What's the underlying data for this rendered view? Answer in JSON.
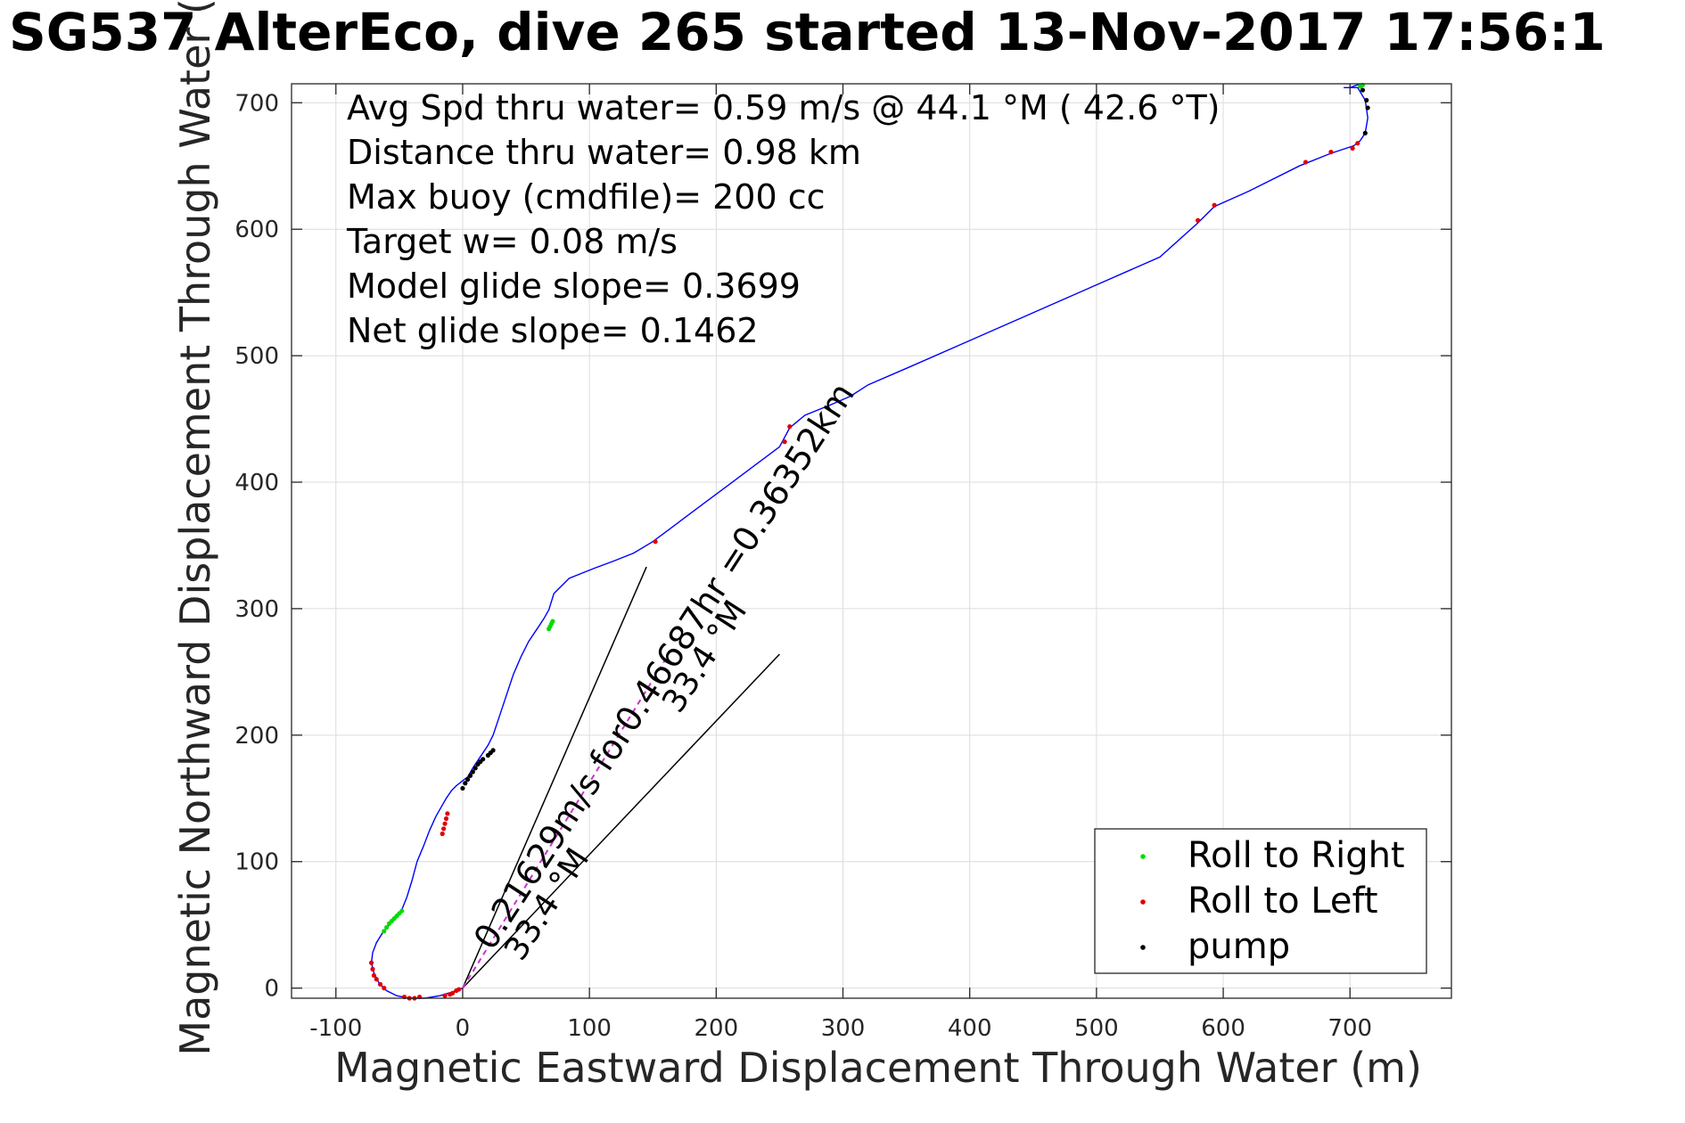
{
  "chart_data": {
    "type": "line",
    "title": "SG537 AlterEco, dive 265 started 13-Nov-2017 17:56:1",
    "xlabel": "Magnetic Eastward Displacement Through Water (m)",
    "ylabel": "Magnetic Northward Displacement Through Water (m)",
    "xlim": [
      -135,
      780
    ],
    "ylim": [
      -8,
      715
    ],
    "xticks": [
      -100,
      0,
      100,
      200,
      300,
      400,
      500,
      600,
      700
    ],
    "yticks": [
      0,
      100,
      200,
      300,
      400,
      500,
      600,
      700
    ],
    "grid": true,
    "legend_position": "bottom-right",
    "colors": {
      "track": "#0000ff",
      "right": "#00dd00",
      "left": "#e00000",
      "pump": "#000000",
      "current": "#000000",
      "axes": "#262626"
    },
    "track": {
      "x": [
        0,
        -8,
        -18,
        -30,
        -42,
        -52,
        -60,
        -66,
        -70,
        -72,
        -71,
        -68,
        -63,
        -57,
        -52,
        -48,
        -44,
        -40,
        -36,
        -31,
        -26,
        -21,
        -17,
        -13,
        -9,
        -5,
        0,
        4,
        8,
        12,
        16,
        20,
        24,
        28,
        34,
        40,
        46,
        52,
        56,
        60,
        64,
        68,
        72,
        84,
        104,
        120,
        135,
        150,
        170,
        190,
        210,
        230,
        250,
        258,
        270,
        290,
        306,
        320,
        350,
        400,
        450,
        500,
        550,
        580,
        593,
        620,
        660,
        685,
        703,
        708,
        712,
        714,
        712,
        706,
        695,
        700,
        708,
        710
      ],
      "y": [
        0,
        -3,
        -6,
        -8,
        -8,
        -6,
        -2,
        4,
        12,
        20,
        28,
        36,
        44,
        51,
        56,
        62,
        72,
        85,
        100,
        112,
        125,
        136,
        143,
        150,
        156,
        160,
        164,
        167,
        174,
        180,
        186,
        192,
        200,
        212,
        230,
        248,
        262,
        274,
        280,
        286,
        292,
        299,
        312,
        324,
        332,
        338,
        344,
        353,
        368,
        383,
        398,
        413,
        428,
        443,
        453,
        461,
        468,
        477,
        490,
        512,
        534,
        556,
        578,
        605,
        618,
        630,
        650,
        660,
        666,
        670,
        676,
        688,
        702,
        712,
        712,
        712,
        715,
        714
      ]
    },
    "series": [
      {
        "name": "Roll to Right",
        "x": [
          -62,
          -60,
          -58,
          -56,
          -54,
          -52,
          -50,
          -48,
          68,
          69,
          70,
          71,
          708,
          710
        ],
        "y": [
          45,
          48,
          51,
          53,
          55,
          57,
          59,
          61,
          284,
          286,
          288,
          290,
          713,
          714
        ]
      },
      {
        "name": "Roll to Left",
        "x": [
          -72,
          -71,
          -70,
          -68,
          -65,
          -62,
          -46,
          -42,
          -38,
          -34,
          -14,
          -10,
          -8,
          -5,
          -3,
          -16,
          -15,
          -14,
          -13,
          -12,
          152,
          254,
          258,
          580,
          593,
          665,
          685,
          702,
          706
        ],
        "y": [
          20,
          15,
          10,
          7,
          3,
          0,
          -7,
          -8,
          -8,
          -7,
          -6,
          -5,
          -4,
          -2,
          -1,
          122,
          126,
          130,
          134,
          138,
          353,
          432,
          444,
          607,
          619,
          653,
          661,
          664,
          668
        ],
        "subtitle_note": ""
      },
      {
        "name": "pump",
        "x": [
          0,
          2,
          4,
          6,
          8,
          10,
          12,
          14,
          16,
          20,
          22,
          24,
          712,
          714,
          713,
          710
        ],
        "y": [
          158,
          162,
          165,
          168,
          171,
          174,
          177,
          179,
          181,
          184,
          186,
          188,
          676,
          696,
          702,
          710
        ]
      }
    ],
    "current_lines": [
      {
        "x": [
          0,
          145
        ],
        "y": [
          0,
          333
        ]
      },
      {
        "x": [
          0,
          250
        ],
        "y": [
          0,
          264
        ]
      }
    ],
    "dashed_line": {
      "x": [
        0,
        160
      ],
      "y": [
        0,
        260
      ]
    },
    "stats": [
      "Avg Spd thru water=  0.59 m/s @  44.1 °M ( 42.6 °T)",
      "Distance thru water=  0.98 km",
      "Max buoy (cmdfile)= 200 cc",
      "Target w= 0.08 m/s",
      "Model glide slope= 0.3699",
      "Net glide slope= 0.1462"
    ],
    "annotations": {
      "current_label": "0.21629m/s for0.46687hr =0.36352km",
      "heading_label_1": "33.4 °M",
      "heading_label_2": "33.4 °M"
    }
  }
}
